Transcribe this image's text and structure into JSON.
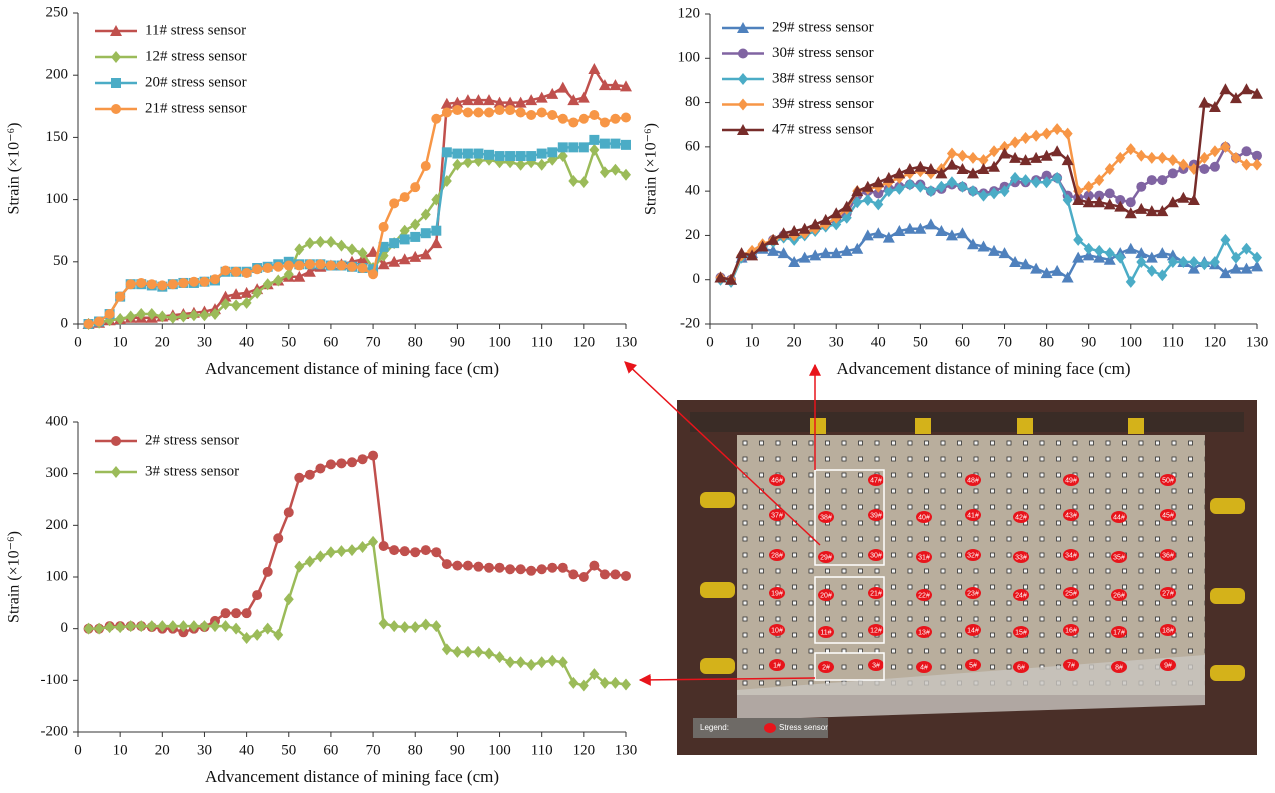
{
  "chart_data": [
    {
      "type": "line",
      "xlabel": "Advancement distance of mining face (cm)",
      "ylabel": "Strain (×10⁻⁶)",
      "xlim": [
        0,
        130
      ],
      "xticks": [
        0,
        10,
        20,
        30,
        40,
        50,
        60,
        70,
        80,
        90,
        100,
        110,
        120,
        130
      ],
      "ylim": [
        0,
        250
      ],
      "yticks": [
        0,
        50,
        100,
        150,
        200,
        250
      ],
      "x": [
        2.5,
        5,
        7.5,
        10,
        12.5,
        15,
        17.5,
        20,
        22.5,
        25,
        27.5,
        30,
        32.5,
        35,
        37.5,
        40,
        42.5,
        45,
        47.5,
        50,
        52.5,
        55,
        57.5,
        60,
        62.5,
        65,
        67.5,
        70,
        72.5,
        75,
        77.5,
        80,
        82.5,
        85,
        87.5,
        90,
        92.5,
        95,
        97.5,
        100,
        102.5,
        105,
        107.5,
        110,
        112.5,
        115,
        117.5,
        120,
        122.5,
        125,
        127.5,
        130
      ],
      "series": [
        {
          "name": "11# stress sensor",
          "color": "#c0504d",
          "marker": "triangle",
          "values": [
            0,
            1,
            3,
            4,
            5,
            5,
            5,
            6,
            7,
            8,
            9,
            10,
            12,
            22,
            24,
            25,
            28,
            32,
            35,
            38,
            38,
            42,
            46,
            47,
            48,
            50,
            52,
            58,
            48,
            50,
            52,
            54,
            56,
            65,
            177,
            178,
            180,
            180,
            180,
            178,
            178,
            178,
            180,
            182,
            185,
            190,
            180,
            182,
            205,
            192,
            192,
            191
          ]
        },
        {
          "name": "12# stress sensor",
          "color": "#9bbb59",
          "marker": "diamond",
          "values": [
            0,
            1,
            3,
            4,
            6,
            8,
            8,
            6,
            5,
            6,
            7,
            7,
            8,
            16,
            15,
            17,
            25,
            32,
            35,
            40,
            60,
            65,
            66,
            66,
            63,
            60,
            57,
            45,
            55,
            65,
            75,
            80,
            88,
            100,
            115,
            128,
            130,
            131,
            132,
            130,
            130,
            128,
            130,
            128,
            132,
            135,
            115,
            114,
            140,
            122,
            124,
            120
          ]
        },
        {
          "name": "20# stress sensor",
          "color": "#4bacc6",
          "marker": "square",
          "values": [
            0,
            2,
            8,
            22,
            32,
            32,
            31,
            30,
            32,
            33,
            33,
            34,
            35,
            42,
            42,
            42,
            45,
            46,
            48,
            50,
            48,
            48,
            48,
            47,
            47,
            46,
            45,
            44,
            62,
            65,
            68,
            70,
            73,
            75,
            138,
            137,
            137,
            137,
            136,
            135,
            135,
            135,
            135,
            137,
            138,
            142,
            142,
            142,
            148,
            145,
            145,
            144
          ]
        },
        {
          "name": "21# stress sensor",
          "color": "#f79646",
          "marker": "circle",
          "values": [
            0,
            2,
            8,
            22,
            32,
            33,
            32,
            31,
            32,
            33,
            34,
            34,
            36,
            43,
            42,
            41,
            44,
            45,
            46,
            47,
            47,
            48,
            48,
            47,
            47,
            46,
            45,
            40,
            78,
            97,
            102,
            110,
            127,
            165,
            170,
            172,
            170,
            170,
            170,
            172,
            172,
            170,
            168,
            170,
            168,
            165,
            162,
            165,
            168,
            162,
            165,
            166
          ]
        }
      ]
    },
    {
      "type": "line",
      "xlabel": "Advancement distance of mining face (cm)",
      "ylabel": "Strain (×10⁻⁶)",
      "xlim": [
        0,
        130
      ],
      "xticks": [
        0,
        10,
        20,
        30,
        40,
        50,
        60,
        70,
        80,
        90,
        100,
        110,
        120,
        130
      ],
      "ylim": [
        -20,
        120
      ],
      "yticks": [
        -20,
        0,
        20,
        40,
        60,
        80,
        100,
        120
      ],
      "x": [
        2.5,
        5,
        7.5,
        10,
        12.5,
        15,
        17.5,
        20,
        22.5,
        25,
        27.5,
        30,
        32.5,
        35,
        37.5,
        40,
        42.5,
        45,
        47.5,
        50,
        52.5,
        55,
        57.5,
        60,
        62.5,
        65,
        67.5,
        70,
        72.5,
        75,
        77.5,
        80,
        82.5,
        85,
        87.5,
        90,
        92.5,
        95,
        97.5,
        100,
        102.5,
        105,
        107.5,
        110,
        112.5,
        115,
        117.5,
        120,
        122.5,
        125,
        127.5,
        130
      ],
      "series": [
        {
          "name": "29# stress sensor",
          "color": "#4f81bd",
          "marker": "triangle",
          "values": [
            1,
            0,
            10,
            12,
            14,
            13,
            12,
            8,
            10,
            11,
            12,
            12,
            13,
            14,
            20,
            21,
            19,
            22,
            23,
            23,
            25,
            22,
            20,
            21,
            16,
            15,
            13,
            12,
            8,
            7,
            5,
            3,
            4,
            1,
            10,
            11,
            10,
            9,
            12,
            14,
            12,
            10,
            12,
            11,
            8,
            5,
            8,
            7,
            3,
            5,
            5,
            6
          ]
        },
        {
          "name": "30# stress sensor",
          "color": "#8064a2",
          "marker": "circle",
          "values": [
            1,
            0,
            10,
            12,
            15,
            18,
            20,
            20,
            21,
            23,
            25,
            27,
            30,
            38,
            40,
            39,
            41,
            42,
            43,
            43,
            40,
            41,
            43,
            42,
            40,
            39,
            40,
            42,
            44,
            44,
            45,
            47,
            46,
            38,
            37,
            38,
            38,
            39,
            36,
            35,
            42,
            45,
            45,
            48,
            50,
            52,
            50,
            51,
            60,
            55,
            58,
            56
          ]
        },
        {
          "name": "38# stress sensor",
          "color": "#4bacc6",
          "marker": "diamond",
          "values": [
            0,
            -1,
            10,
            12,
            15,
            17,
            19,
            18,
            20,
            22,
            24,
            25,
            28,
            35,
            36,
            34,
            40,
            41,
            43,
            42,
            40,
            42,
            44,
            42,
            40,
            38,
            39,
            40,
            46,
            45,
            44,
            44,
            46,
            36,
            18,
            14,
            13,
            12,
            10,
            -1,
            8,
            4,
            2,
            8,
            8,
            8,
            7,
            8,
            18,
            10,
            14,
            10
          ]
        },
        {
          "name": "39# stress sensor",
          "color": "#f79646",
          "marker": "diamond",
          "values": [
            1,
            0,
            11,
            13,
            16,
            18,
            20,
            20,
            21,
            23,
            25,
            28,
            32,
            40,
            41,
            42,
            44,
            46,
            48,
            49,
            48,
            50,
            57,
            56,
            55,
            54,
            58,
            60,
            62,
            64,
            65,
            66,
            68,
            66,
            40,
            42,
            45,
            50,
            55,
            59,
            56,
            55,
            55,
            54,
            52,
            50,
            55,
            58,
            60,
            55,
            52,
            52
          ]
        },
        {
          "name": "47# stress sensor",
          "color": "#772c2a",
          "marker": "triangle",
          "values": [
            1,
            0,
            12,
            11,
            15,
            18,
            21,
            22,
            23,
            25,
            27,
            30,
            33,
            40,
            42,
            44,
            46,
            48,
            50,
            51,
            50,
            48,
            52,
            50,
            48,
            50,
            51,
            57,
            55,
            54,
            55,
            56,
            58,
            54,
            36,
            35,
            35,
            34,
            33,
            30,
            32,
            31,
            31,
            35,
            37,
            36,
            80,
            78,
            86,
            82,
            86,
            84
          ]
        }
      ]
    },
    {
      "type": "line",
      "xlabel": "Advancement distance of mining face (cm)",
      "ylabel": "Strain (×10⁻⁶)",
      "xlim": [
        0,
        130
      ],
      "xticks": [
        0,
        10,
        20,
        30,
        40,
        50,
        60,
        70,
        80,
        90,
        100,
        110,
        120,
        130
      ],
      "ylim": [
        -200,
        400
      ],
      "yticks": [
        -200,
        -100,
        0,
        100,
        200,
        300,
        400
      ],
      "x": [
        2.5,
        5,
        7.5,
        10,
        12.5,
        15,
        17.5,
        20,
        22.5,
        25,
        27.5,
        30,
        32.5,
        35,
        37.5,
        40,
        42.5,
        45,
        47.5,
        50,
        52.5,
        55,
        57.5,
        60,
        62.5,
        65,
        67.5,
        70,
        72.5,
        75,
        77.5,
        80,
        82.5,
        85,
        87.5,
        90,
        92.5,
        95,
        97.5,
        100,
        102.5,
        105,
        107.5,
        110,
        112.5,
        115,
        117.5,
        120,
        122.5,
        125,
        127.5,
        130
      ],
      "series": [
        {
          "name": "2# stress sensor",
          "color": "#c0504d",
          "marker": "circle",
          "values": [
            0,
            0,
            5,
            5,
            5,
            5,
            3,
            0,
            0,
            -7,
            0,
            3,
            15,
            30,
            30,
            30,
            65,
            110,
            175,
            225,
            292,
            298,
            310,
            318,
            320,
            322,
            328,
            335,
            160,
            152,
            150,
            148,
            152,
            148,
            125,
            122,
            122,
            120,
            118,
            118,
            115,
            115,
            112,
            115,
            118,
            118,
            105,
            100,
            122,
            105,
            105,
            102
          ]
        },
        {
          "name": "3# stress sensor",
          "color": "#9bbb59",
          "marker": "diamond",
          "values": [
            0,
            0,
            3,
            3,
            5,
            5,
            5,
            5,
            5,
            5,
            5,
            5,
            5,
            5,
            0,
            -18,
            -12,
            0,
            -12,
            57,
            120,
            130,
            140,
            148,
            150,
            152,
            158,
            168,
            10,
            5,
            3,
            3,
            8,
            5,
            -40,
            -45,
            -45,
            -45,
            -48,
            -55,
            -65,
            -65,
            -70,
            -65,
            -62,
            -65,
            -105,
            -110,
            -88,
            -105,
            -105,
            -108
          ]
        }
      ]
    }
  ],
  "photo": {
    "legend_title": "Legend:",
    "legend_item": "Stress sensor",
    "sensors": [
      "1#",
      "2#",
      "3#",
      "4#",
      "5#",
      "6#",
      "7#",
      "8#",
      "9#",
      "10#",
      "11#",
      "12#",
      "13#",
      "14#",
      "15#",
      "16#",
      "17#",
      "18#",
      "19#",
      "20#",
      "21#",
      "22#",
      "23#",
      "24#",
      "25#",
      "26#",
      "27#",
      "28#",
      "29#",
      "30#",
      "31#",
      "32#",
      "33#",
      "34#",
      "35#",
      "36#",
      "37#",
      "38#",
      "39#",
      "40#",
      "41#",
      "42#",
      "43#",
      "44#",
      "45#",
      "46#",
      "47#",
      "48#",
      "49#",
      "50#"
    ]
  }
}
